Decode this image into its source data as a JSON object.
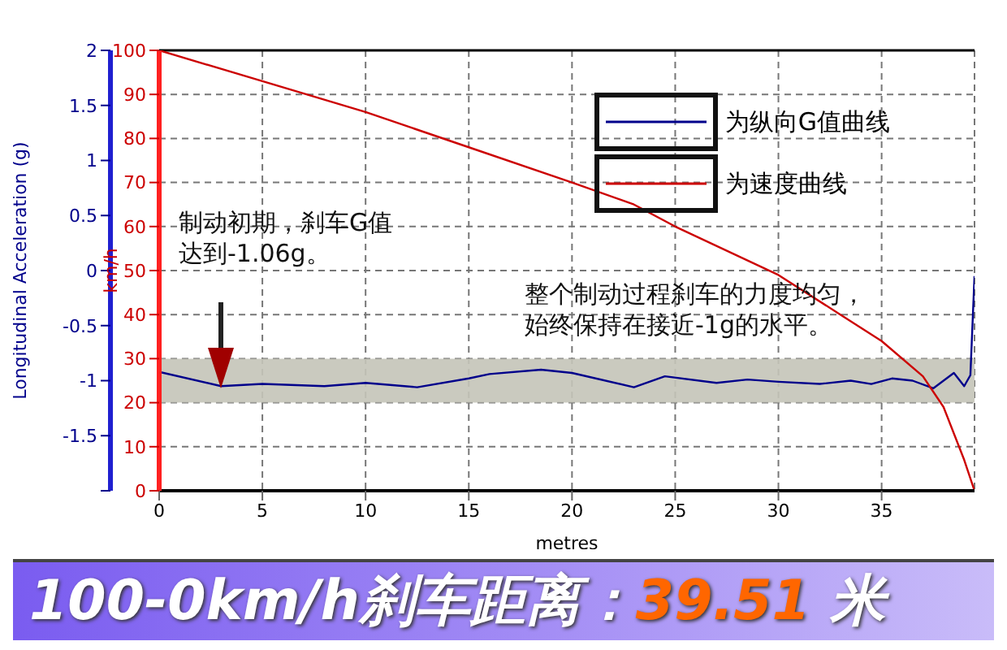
{
  "chart_data": {
    "type": "line",
    "title": "100-0km/h刹车距离：39.51 米",
    "xlabel": "metres",
    "ylabel": "Longitudinal Acceleration (g)",
    "y2label": "km/h",
    "xlim": [
      0,
      39.5
    ],
    "xticks": [
      0,
      5,
      10,
      15,
      20,
      25,
      30,
      35
    ],
    "ylim": [
      -2,
      2
    ],
    "yticks": [
      {
        "value": -2,
        "label": null
      },
      -1.5,
      -1,
      -0.5,
      0,
      0.5,
      1,
      1.5,
      2
    ],
    "y2lim": [
      0,
      100
    ],
    "y2ticks": [
      0,
      10,
      20,
      30,
      40,
      50,
      60,
      70,
      80,
      90,
      100
    ],
    "grid": true,
    "legend": "top right",
    "marker": "none",
    "line_style": "solid",
    "series": [
      {
        "name": "为纵向G值曲线",
        "color": "#00008b",
        "x": [
          0,
          3,
          5,
          8,
          10,
          12.5,
          15,
          16,
          18.5,
          20,
          23,
          24.5,
          27,
          28.5,
          30,
          32,
          33.5,
          34.5,
          35.5,
          36.5,
          37.5,
          38.5,
          39,
          39.3,
          39.5
        ],
        "values": [
          -0.92,
          -1.05,
          -1.03,
          -1.05,
          -1.02,
          -1.06,
          -0.98,
          -0.94,
          -0.9,
          -0.93,
          -1.06,
          -0.96,
          -1.02,
          -0.99,
          -1.01,
          -1.03,
          -1.0,
          -1.03,
          -0.98,
          -1.0,
          -1.07,
          -0.93,
          -1.05,
          -0.95,
          -0.05
        ]
      },
      {
        "name": "为速度曲线",
        "color": "#cc0000",
        "axis": "y2",
        "x": [
          0,
          5,
          10,
          15,
          20,
          23,
          25,
          30,
          33,
          35,
          37,
          38,
          39,
          39.5
        ],
        "values": [
          100,
          93,
          86,
          78,
          70,
          65,
          60,
          49,
          40,
          34,
          26,
          19,
          7,
          0
        ]
      }
    ],
    "bands": [
      {
        "axis": "y",
        "from": -1.2,
        "to": -0.8,
        "color": "#c4c4b8"
      }
    ],
    "annotations": [
      "制动初期，刹车G值达到-1.06g。",
      "整个制动过程刹车的力度均匀，始终保持在接近-1g的水平。"
    ]
  }
}
